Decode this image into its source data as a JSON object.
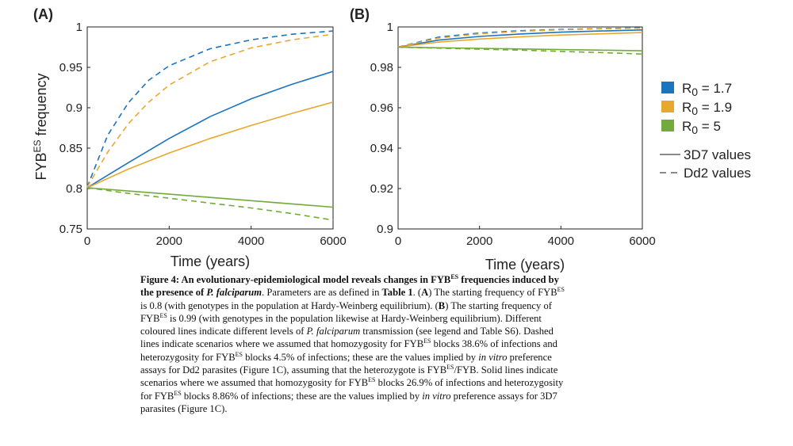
{
  "chart_data": [
    {
      "panel_label": "(A)",
      "type": "line",
      "xlabel": "Time (years)",
      "ylabel_main": "FYB",
      "ylabel_sup": "ES",
      "ylabel_rest": " frequency",
      "xlim": [
        0,
        6000
      ],
      "ylim": [
        0.75,
        1
      ],
      "xticks": [
        0,
        2000,
        4000,
        6000
      ],
      "yticks": [
        0.75,
        0.8,
        0.85,
        0.9,
        0.95,
        1
      ],
      "ytick_labels": [
        "0.75",
        "0.8",
        "0.85",
        "0.9",
        "0.95",
        "1"
      ],
      "grid": false,
      "series": [
        {
          "color": "#1a74c0",
          "style": "solid",
          "x": [
            0,
            1000,
            2000,
            3000,
            4000,
            5000,
            6000
          ],
          "y": [
            0.801,
            0.832,
            0.862,
            0.889,
            0.911,
            0.929,
            0.945
          ]
        },
        {
          "color": "#e8a830",
          "style": "solid",
          "x": [
            0,
            1000,
            2000,
            3000,
            4000,
            5000,
            6000
          ],
          "y": [
            0.801,
            0.824,
            0.844,
            0.862,
            0.878,
            0.893,
            0.907
          ]
        },
        {
          "color": "#73ab3a",
          "style": "solid",
          "x": [
            0,
            1000,
            2000,
            3000,
            4000,
            5000,
            6000
          ],
          "y": [
            0.801,
            0.797,
            0.793,
            0.789,
            0.785,
            0.781,
            0.777
          ]
        },
        {
          "color": "#1a74c0",
          "style": "dashed",
          "x": [
            0,
            500,
            1000,
            1500,
            2000,
            3000,
            4000,
            5000,
            6000
          ],
          "y": [
            0.802,
            0.866,
            0.906,
            0.934,
            0.952,
            0.973,
            0.984,
            0.991,
            0.995
          ]
        },
        {
          "color": "#e8a830",
          "style": "dashed",
          "x": [
            0,
            500,
            1000,
            1500,
            2000,
            3000,
            4000,
            5000,
            6000
          ],
          "y": [
            0.802,
            0.845,
            0.88,
            0.907,
            0.928,
            0.957,
            0.974,
            0.984,
            0.991
          ]
        },
        {
          "color": "#73ab3a",
          "style": "dashed",
          "x": [
            0,
            1000,
            2000,
            3000,
            4000,
            5000,
            6000
          ],
          "y": [
            0.801,
            0.794,
            0.788,
            0.782,
            0.776,
            0.769,
            0.761
          ]
        }
      ]
    },
    {
      "panel_label": "(B)",
      "type": "line",
      "xlabel": "Time (years)",
      "xlim": [
        0,
        6000
      ],
      "ylim": [
        0.9,
        1
      ],
      "xticks": [
        0,
        2000,
        4000,
        6000
      ],
      "yticks": [
        0.9,
        0.92,
        0.94,
        0.96,
        0.98,
        1
      ],
      "ytick_labels": [
        "0.9",
        "0.92",
        "0.94",
        "0.96",
        "0.98",
        "1"
      ],
      "grid": false,
      "series": [
        {
          "color": "#1a74c0",
          "style": "solid",
          "x": [
            0,
            1000,
            2000,
            3000,
            4000,
            5000,
            6000
          ],
          "y": [
            0.99,
            0.9935,
            0.9953,
            0.9965,
            0.9974,
            0.998,
            0.9985
          ]
        },
        {
          "color": "#e8a830",
          "style": "solid",
          "x": [
            0,
            1000,
            2000,
            3000,
            4000,
            5000,
            6000
          ],
          "y": [
            0.99,
            0.9925,
            0.994,
            0.9951,
            0.996,
            0.9966,
            0.9972
          ]
        },
        {
          "color": "#73ab3a",
          "style": "solid",
          "x": [
            0,
            1000,
            2000,
            3000,
            4000,
            5000,
            6000
          ],
          "y": [
            0.99,
            0.9897,
            0.9894,
            0.9891,
            0.9888,
            0.9885,
            0.9882
          ]
        },
        {
          "color": "#1a74c0",
          "style": "dashed",
          "x": [
            0,
            1000,
            2000,
            3000,
            4000,
            5000,
            6000
          ],
          "y": [
            0.99,
            0.995,
            0.997,
            0.9981,
            0.9988,
            0.9992,
            0.9995
          ]
        },
        {
          "color": "#e8a830",
          "style": "dashed",
          "x": [
            0,
            1000,
            2000,
            3000,
            4000,
            5000,
            6000
          ],
          "y": [
            0.99,
            0.9945,
            0.9966,
            0.9978,
            0.9986,
            0.9991,
            0.9994
          ]
        },
        {
          "color": "#73ab3a",
          "style": "dashed",
          "x": [
            0,
            1000,
            2000,
            3000,
            4000,
            5000,
            6000
          ],
          "y": [
            0.99,
            0.9895,
            0.989,
            0.9885,
            0.9879,
            0.9873,
            0.9866
          ]
        }
      ]
    }
  ],
  "legend": {
    "colors": [
      {
        "r": "R",
        "sub": "0",
        "value": " = 1.7",
        "color": "#1a74c0"
      },
      {
        "r": "R",
        "sub": "0",
        "value": " = 1.9",
        "color": "#e8a830"
      },
      {
        "r": "R",
        "sub": "0",
        "value": " = 5",
        "color": "#73ab3a"
      }
    ],
    "lines": [
      {
        "label": "3D7 values",
        "style": "solid"
      },
      {
        "label": "Dd2 values",
        "style": "dashed"
      }
    ]
  },
  "caption": {
    "title": "Figure 4: An evolutionary-epidemiological model reveals changes in FYB",
    "title_sup": "ES",
    "title_cont": " frequencies induced by the presence of ",
    "title_species": "P. falciparum",
    "p1": ". Parameters are as defined in ",
    "table_ref": "Table 1",
    "p2": ". (",
    "A": "A",
    "p3": ") The starting frequency of FYB",
    "sup1": "ES",
    "p4": " is 0.8 (with genotypes in the population at Hardy-Weinberg equilibrium). (",
    "B": "B",
    "p5": ")  The starting frequency of FYB",
    "sup2": "ES",
    "p6": " is 0.99 (with genotypes in the population likewise at Hardy-Weinberg equilibrium). Different coloured lines indicate different levels of ",
    "species2": "P. falciparum",
    "p7": " transmission (see legend and Table S6). Dashed lines indicate scenarios where we assumed that homozygosity for FYB",
    "sup3": "ES",
    "p8": " blocks 38.6% of infections and heterozygosity for FYB",
    "sup4": "ES",
    "p9": " blocks 4.5% of infections; these are the values implied by ",
    "invitro1": "in vitro",
    "p10": " preference assays for Dd2 parasites (Figure 1C), assuming that the heterozygote is FYB",
    "sup5": "ES",
    "p11": "/FYB. Solid lines indicate scenarios where we assumed that homozygosity for FYB",
    "sup6": "ES",
    "p12": " blocks 26.9% of infections and heterozygosity for FYB",
    "sup7": "ES",
    "p13": " blocks 8.86% of infections; these are the values implied by ",
    "invitro2": "in vitro",
    "p14": " preference assays for 3D7 parasites (Figure 1C)."
  }
}
